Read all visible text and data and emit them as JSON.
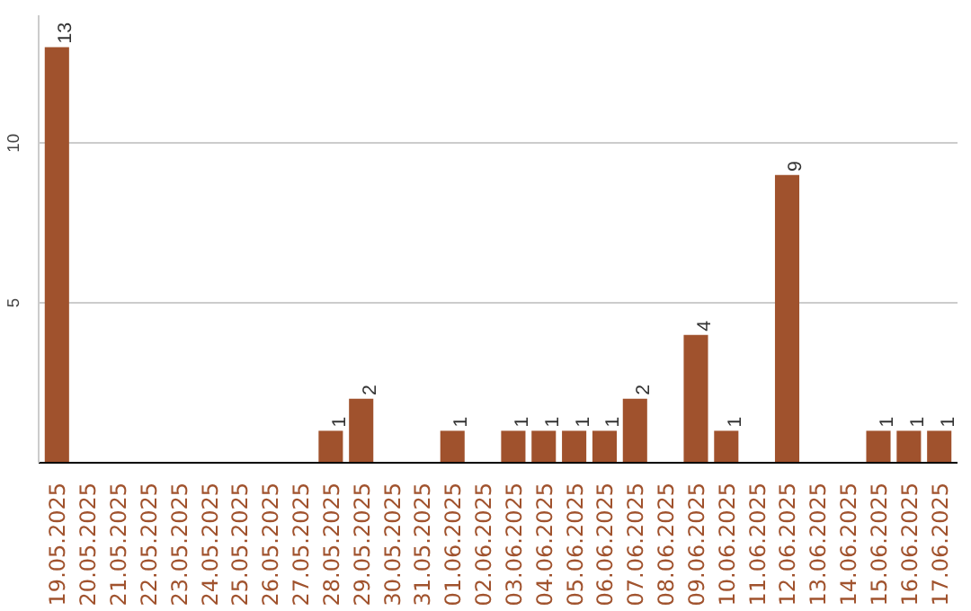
{
  "chart_data": {
    "type": "bar",
    "categories": [
      "19.05.2025",
      "20.05.2025",
      "21.05.2025",
      "22.05.2025",
      "23.05.2025",
      "24.05.2025",
      "25.05.2025",
      "26.05.2025",
      "27.05.2025",
      "28.05.2025",
      "29.05.2025",
      "30.05.2025",
      "31.05.2025",
      "01.06.2025",
      "02.06.2025",
      "03.06.2025",
      "04.06.2025",
      "05.06.2025",
      "06.06.2025",
      "07.06.2025",
      "08.06.2025",
      "09.06.2025",
      "10.06.2025",
      "11.06.2025",
      "12.06.2025",
      "13.06.2025",
      "14.06.2025",
      "15.06.2025",
      "16.06.2025",
      "17.06.2025"
    ],
    "values": [
      13,
      0,
      0,
      0,
      0,
      0,
      0,
      0,
      0,
      1,
      2,
      0,
      0,
      1,
      0,
      1,
      1,
      1,
      1,
      2,
      0,
      4,
      1,
      0,
      9,
      0,
      0,
      1,
      1,
      1
    ],
    "value_labels": [
      "13",
      null,
      null,
      null,
      null,
      null,
      null,
      null,
      null,
      "1",
      "2",
      null,
      null,
      "1",
      null,
      "1",
      "1",
      "1",
      "1",
      "2",
      null,
      "4",
      "1",
      null,
      "9",
      null,
      null,
      "1",
      "1",
      "1"
    ],
    "color": "#a0522d",
    "ylim": [
      0,
      14
    ],
    "yticks": [
      5,
      10
    ],
    "grid": "y"
  }
}
